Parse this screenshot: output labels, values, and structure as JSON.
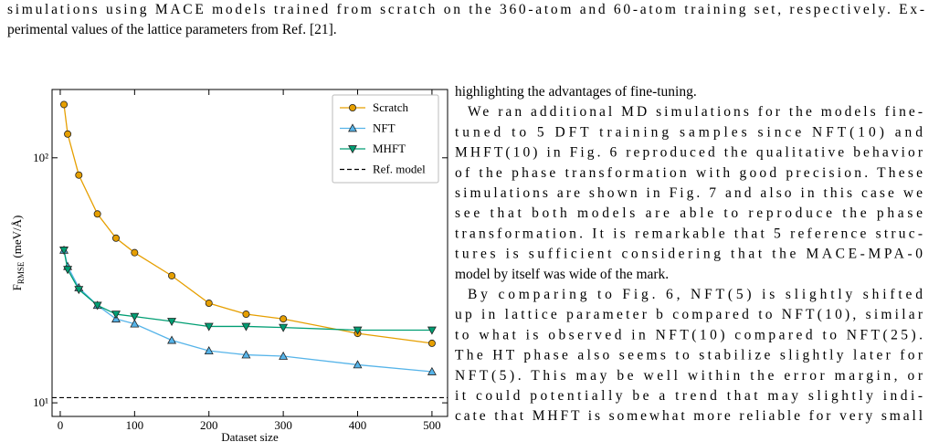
{
  "caption": {
    "lines": [
      "simulations using MACE models trained from scratch on the 360-atom and 60-atom training set, respectively. Ex-",
      "perimental values of the lattice parameters from Ref. [21]."
    ]
  },
  "body": {
    "paragraphs": [
      [
        "highlighting the advantages of fine-tuning."
      ],
      [
        "We ran additional MD simulations for the models fine-",
        "tuned to 5 DFT training samples since NFT(10) and",
        "MHFT(10) in Fig. 6 reproduced the qualitative behavior",
        "of the phase transformation with good precision. These",
        "simulations are shown in Fig. 7 and also in this case we",
        "see that both models are able to reproduce the phase",
        "transformation. It is remarkable that 5 reference struc-",
        "tures is sufficient considering that the MACE-MPA-0",
        "model by itself was wide of the mark."
      ],
      [
        "By comparing to Fig. 6, NFT(5) is slightly shifted",
        "up in lattice parameter b compared to NFT(10), similar",
        "to what is observed in NFT(10) compared to NFT(25).",
        "The HT phase also seems to stabilize slightly later for",
        "NFT(5). This may be well within the error margin, or",
        "it could potentially be a trend that may slightly indi-",
        "cate that MHFT is somewhat more reliable for very small"
      ]
    ]
  },
  "chart_data": {
    "type": "line",
    "xlabel": "Dataset size",
    "ylabel": [
      "F",
      "RMSE",
      "(meV/Å)"
    ],
    "x": [
      5,
      10,
      25,
      50,
      75,
      100,
      150,
      200,
      250,
      300,
      400,
      500
    ],
    "series": [
      {
        "name": "Scratch",
        "color": "#e69f00",
        "marker": "o",
        "values": [
          165,
          125,
          85,
          59,
          47,
          41,
          33,
          25.5,
          23,
          22,
          19.2,
          17.5
        ]
      },
      {
        "name": "NFT",
        "color": "#56b4e9",
        "marker": "^",
        "values": [
          42,
          36,
          29.5,
          25,
          22,
          21,
          18,
          16.3,
          15.7,
          15.5,
          14.3,
          13.4
        ]
      },
      {
        "name": "MHFT",
        "color": "#009e73",
        "marker": "v",
        "values": [
          42,
          35,
          29,
          25,
          23,
          22.5,
          21.5,
          20.5,
          20.5,
          20.3,
          19.8,
          19.8
        ]
      }
    ],
    "hlines": [
      {
        "name": "Ref. model",
        "color": "#000000",
        "linestyle": "dashed",
        "value": 10.5
      }
    ],
    "xlim": [
      -11,
      521
    ],
    "xticks": [
      0,
      100,
      200,
      300,
      400,
      500
    ],
    "ylim": [
      8.8,
      190
    ],
    "yscale": "log",
    "yticks": [
      {
        "value": 10,
        "label": "10¹"
      },
      {
        "value": 100,
        "label": "10²"
      }
    ],
    "legend": "upper right"
  }
}
